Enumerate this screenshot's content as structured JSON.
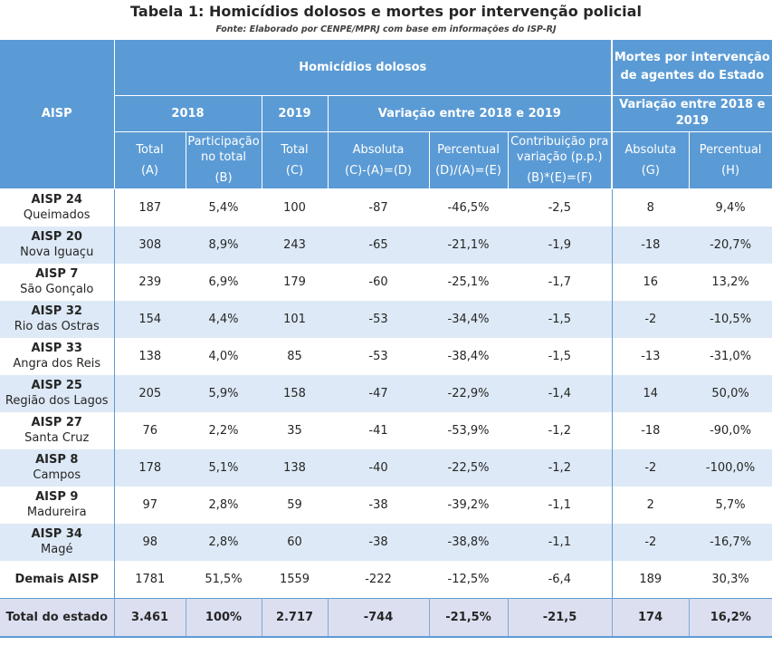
{
  "title": "Tabela 1: Homicídios dolosos e mortes por intervenção policial",
  "source": "Fonte: Elaborado por CENPE/MPRJ com base em informações do ISP-RJ",
  "header": {
    "aisp": "AISP",
    "homicidios": "Homicídios dolosos",
    "mortes": "Mortes por intervenção de agentes do Estado",
    "y2018": "2018",
    "y2019": "2019",
    "variacao": "Variação entre 2018 e 2019",
    "variacao_mortes": "Variação entre 2018 e 2019",
    "cols": [
      {
        "label": "Total",
        "code": "(A)"
      },
      {
        "label": "Participação no total",
        "code": "(B)"
      },
      {
        "label": "Total",
        "code": "(C)"
      },
      {
        "label": "Absoluta",
        "code": "(C)-(A)=(D)"
      },
      {
        "label": "Percentual",
        "code": "(D)/(A)=(E)"
      },
      {
        "label": "Contribuição pra variação (p.p.)",
        "code": "(B)*(E)=(F)"
      },
      {
        "label": "Absoluta",
        "code": "(G)"
      },
      {
        "label": "Percentual",
        "code": "(H)"
      }
    ]
  },
  "rows": [
    {
      "code": "AISP 24",
      "name": "Queimados",
      "vals": [
        "187",
        "5,4%",
        "100",
        "-87",
        "-46,5%",
        "-2,5",
        "8",
        "9,4%"
      ]
    },
    {
      "code": "AISP 20",
      "name": "Nova Iguaçu",
      "vals": [
        "308",
        "8,9%",
        "243",
        "-65",
        "-21,1%",
        "-1,9",
        "-18",
        "-20,7%"
      ]
    },
    {
      "code": "AISP 7",
      "name": "São Gonçalo",
      "vals": [
        "239",
        "6,9%",
        "179",
        "-60",
        "-25,1%",
        "-1,7",
        "16",
        "13,2%"
      ]
    },
    {
      "code": "AISP 32",
      "name": "Rio das Ostras",
      "vals": [
        "154",
        "4,4%",
        "101",
        "-53",
        "-34,4%",
        "-1,5",
        "-2",
        "-10,5%"
      ]
    },
    {
      "code": "AISP 33",
      "name": "Angra dos Reis",
      "vals": [
        "138",
        "4,0%",
        "85",
        "-53",
        "-38,4%",
        "-1,5",
        "-13",
        "-31,0%"
      ]
    },
    {
      "code": "AISP 25",
      "name": "Região dos Lagos",
      "vals": [
        "205",
        "5,9%",
        "158",
        "-47",
        "-22,9%",
        "-1,4",
        "14",
        "50,0%"
      ]
    },
    {
      "code": "AISP 27",
      "name": "Santa Cruz",
      "vals": [
        "76",
        "2,2%",
        "35",
        "-41",
        "-53,9%",
        "-1,2",
        "-18",
        "-90,0%"
      ]
    },
    {
      "code": "AISP 8",
      "name": "Campos",
      "vals": [
        "178",
        "5,1%",
        "138",
        "-40",
        "-22,5%",
        "-1,2",
        "-2",
        "-100,0%"
      ]
    },
    {
      "code": "AISP 9",
      "name": "Madureira",
      "vals": [
        "97",
        "2,8%",
        "59",
        "-38",
        "-39,2%",
        "-1,1",
        "2",
        "5,7%"
      ]
    },
    {
      "code": "AISP 34",
      "name": "Magé",
      "vals": [
        "98",
        "2,8%",
        "60",
        "-38",
        "-38,8%",
        "-1,1",
        "-2",
        "-16,7%"
      ]
    },
    {
      "code": "Demais AISP",
      "name": "",
      "vals": [
        "1781",
        "51,5%",
        "1559",
        "-222",
        "-12,5%",
        "-6,4",
        "189",
        "30,3%"
      ]
    }
  ],
  "total": {
    "label": "Total do estado",
    "vals": [
      "3.461",
      "100%",
      "2.717",
      "-744",
      "-21,5%",
      "-21,5",
      "174",
      "16,2%"
    ]
  }
}
